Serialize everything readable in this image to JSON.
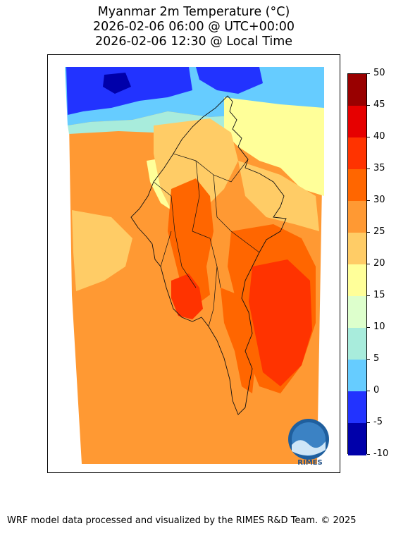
{
  "title": {
    "line1": "Myanmar 2m Temperature (°C)",
    "line2": "2026-02-06 06:00 @ UTC+00:00",
    "line3": "2026-02-06 12:30 @ Local Time"
  },
  "colorbar": {
    "ticks": [
      "50",
      "45",
      "40",
      "35",
      "30",
      "25",
      "20",
      "15",
      "10",
      "5",
      "0",
      "-5",
      "-10"
    ],
    "bins": [
      {
        "range": "45–50",
        "color": "#990000"
      },
      {
        "range": "40–45",
        "color": "#e60000"
      },
      {
        "range": "35–40",
        "color": "#ff3300"
      },
      {
        "range": "30–35",
        "color": "#ff6600"
      },
      {
        "range": "25–30",
        "color": "#ff9933"
      },
      {
        "range": "20–25",
        "color": "#ffcc66"
      },
      {
        "range": "15–20",
        "color": "#ffff99"
      },
      {
        "range": "10–15",
        "color": "#ddffcc"
      },
      {
        "range": "5–10",
        "color": "#a8ecdc"
      },
      {
        "range": "0–5",
        "color": "#66ccff"
      },
      {
        "range": "-5–0",
        "color": "#2233ff"
      },
      {
        "range": "-10–-5",
        "color": "#0000aa"
      }
    ]
  },
  "logo": {
    "text": "RIMES"
  },
  "footer": "WRF model data processed and visualized by the RIMES R&D Team. © 2025"
}
